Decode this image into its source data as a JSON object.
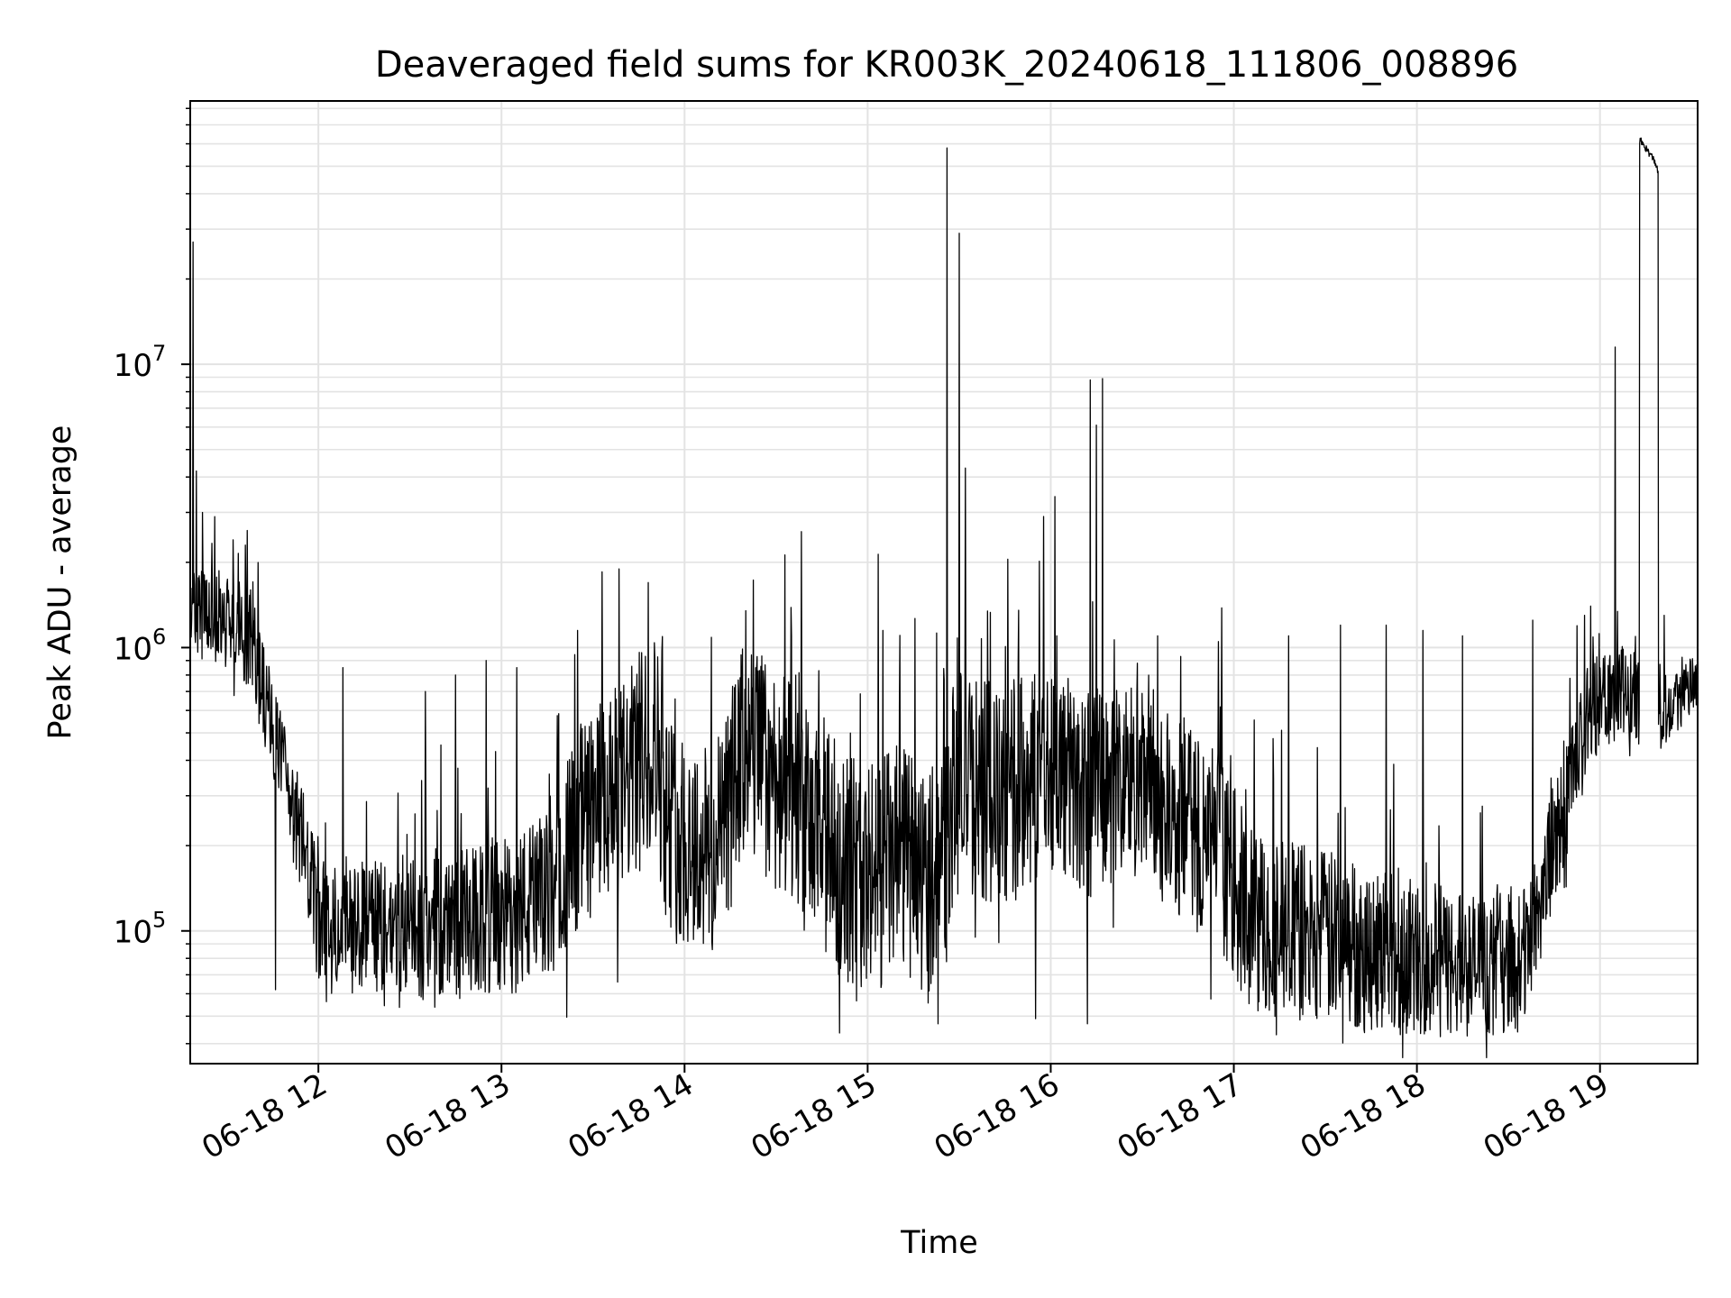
{
  "chart_data": {
    "type": "line",
    "title": "Deaveraged field sums for KR003K_20240618_111806_008896",
    "xlabel": "Time",
    "ylabel": "Peak ADU - average",
    "yscale": "log",
    "grid": true,
    "line_color": "#000000",
    "grid_color": "#e3e3e3",
    "xlim": [
      "06-18 11:18",
      "06-18 19:32"
    ],
    "ylim": [
      34000,
      85000000
    ],
    "x_ticks": [
      "06-18 12",
      "06-18 13",
      "06-18 14",
      "06-18 15",
      "06-18 16",
      "06-18 17",
      "06-18 18",
      "06-18 19"
    ],
    "y_ticks": [
      {
        "value": 100000,
        "base": "10",
        "exp": "5"
      },
      {
        "value": 1000000,
        "base": "10",
        "exp": "6"
      },
      {
        "value": 10000000,
        "base": "10",
        "exp": "7"
      }
    ],
    "series": [
      {
        "baseline": [
          [
            "11:18",
            1300000
          ],
          [
            "11:30",
            1250000
          ],
          [
            "11:38",
            1100000
          ],
          [
            "11:42",
            700000
          ],
          [
            "11:50",
            300000
          ],
          [
            "11:55",
            200000
          ],
          [
            "12:00",
            110000
          ],
          [
            "12:30",
            100000
          ],
          [
            "13:00",
            110000
          ],
          [
            "13:15",
            130000
          ],
          [
            "13:25",
            230000
          ],
          [
            "13:40",
            320000
          ],
          [
            "13:50",
            500000
          ],
          [
            "13:55",
            230000
          ],
          [
            "14:10",
            180000
          ],
          [
            "14:20",
            450000
          ],
          [
            "14:30",
            350000
          ],
          [
            "14:45",
            200000
          ],
          [
            "15:00",
            150000
          ],
          [
            "15:10",
            180000
          ],
          [
            "15:20",
            150000
          ],
          [
            "15:30",
            350000
          ],
          [
            "15:45",
            280000
          ],
          [
            "16:00",
            400000
          ],
          [
            "16:10",
            300000
          ],
          [
            "16:25",
            350000
          ],
          [
            "16:40",
            250000
          ],
          [
            "16:55",
            200000
          ],
          [
            "17:05",
            110000
          ],
          [
            "17:30",
            95000
          ],
          [
            "18:00",
            80000
          ],
          [
            "18:20",
            75000
          ],
          [
            "18:35",
            80000
          ],
          [
            "18:45",
            200000
          ],
          [
            "18:55",
            500000
          ],
          [
            "19:00",
            700000
          ],
          [
            "19:10",
            700000
          ],
          [
            "19:15",
            550000
          ],
          [
            "19:20",
            600000
          ],
          [
            "19:32",
            750000
          ]
        ],
        "noise_envelope": [
          [
            "11:18",
            1.45
          ],
          [
            "11:45",
            1.55
          ],
          [
            "12:00",
            1.6
          ],
          [
            "13:15",
            2.0
          ],
          [
            "13:30",
            2.4
          ],
          [
            "15:00",
            2.6
          ],
          [
            "17:00",
            2.2
          ],
          [
            "18:45",
            1.7
          ],
          [
            "19:32",
            1.25
          ]
        ],
        "spikes": [
          [
            "11:19",
            27000000
          ],
          [
            "11:20",
            4200000
          ],
          [
            "11:22",
            3000000
          ],
          [
            "11:26",
            2900000
          ],
          [
            "11:32",
            2400000
          ],
          [
            "11:36",
            2300000
          ],
          [
            "12:08",
            850000
          ],
          [
            "12:35",
            700000
          ],
          [
            "12:45",
            800000
          ],
          [
            "12:55",
            900000
          ],
          [
            "13:05",
            850000
          ],
          [
            "13:25",
            1150000
          ],
          [
            "13:33",
            1850000
          ],
          [
            "14:20",
            1350000
          ],
          [
            "14:35",
            1100000
          ],
          [
            "15:05",
            1150000
          ],
          [
            "15:26",
            58000000
          ],
          [
            "15:30",
            29000000
          ],
          [
            "15:32",
            4300000
          ],
          [
            "15:46",
            2050000
          ],
          [
            "16:02",
            1100000
          ],
          [
            "16:13",
            8800000
          ],
          [
            "16:15",
            6100000
          ],
          [
            "16:17",
            8900000
          ],
          [
            "16:35",
            1100000
          ],
          [
            "16:55",
            1050000
          ],
          [
            "17:18",
            1100000
          ],
          [
            "17:35",
            1200000
          ],
          [
            "17:50",
            1200000
          ],
          [
            "18:02",
            1150000
          ],
          [
            "18:15",
            1100000
          ],
          [
            "18:38",
            1250000
          ],
          [
            "18:55",
            1300000
          ],
          [
            "19:05",
            11500000
          ],
          [
            "19:13",
            62000000
          ],
          [
            "19:15",
            60000000
          ],
          [
            "19:17",
            55000000
          ],
          [
            "19:19",
            48000000
          ],
          [
            "19:21",
            1300000
          ]
        ],
        "dips": [
          [
            "11:46",
            62000
          ],
          [
            "12:50",
            62000
          ],
          [
            "13:38",
            66000
          ],
          [
            "15:23",
            47000
          ],
          [
            "15:55",
            49000
          ],
          [
            "16:12",
            47000
          ],
          [
            "17:14",
            43000
          ],
          [
            "17:40",
            46000
          ],
          [
            "18:10",
            50000
          ],
          [
            "18:25",
            43000
          ],
          [
            "18:33",
            44000
          ]
        ],
        "flat_tail": [
          [
            "19:13",
            62000000
          ],
          [
            "19:14",
            60000000
          ],
          [
            "19:16",
            56000000
          ],
          [
            "19:18",
            52000000
          ],
          [
            "19:19",
            48000000
          ],
          [
            "19:20",
            900000
          ],
          [
            "19:22",
            650000
          ],
          [
            "19:25",
            600000
          ],
          [
            "19:28",
            850000
          ],
          [
            "19:32",
            700000
          ]
        ]
      }
    ]
  }
}
